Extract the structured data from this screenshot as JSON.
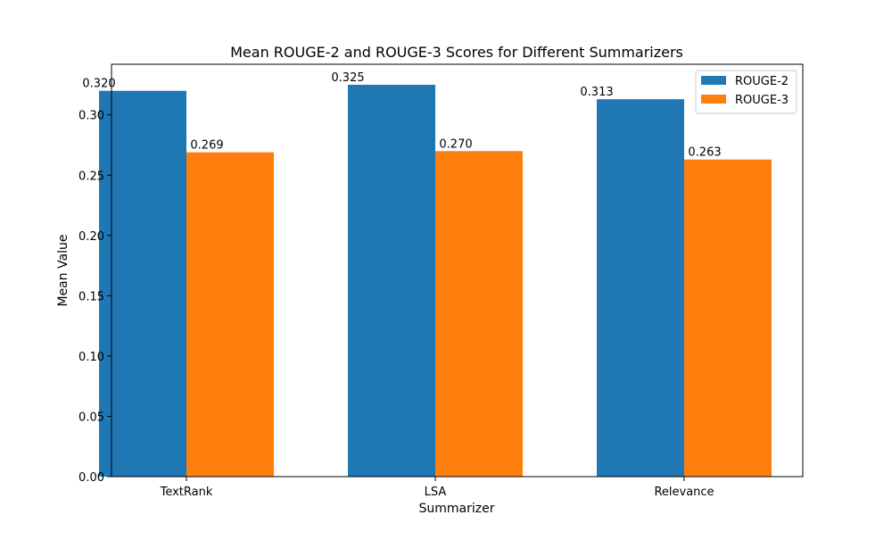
{
  "chart_data": {
    "type": "bar",
    "title": "Mean ROUGE-2 and ROUGE-3 Scores for Different Summarizers",
    "xlabel": "Summarizer",
    "ylabel": "Mean Value",
    "categories": [
      "TextRank",
      "LSA",
      "Relevance"
    ],
    "series": [
      {
        "name": "ROUGE-2",
        "color": "#1f77b4",
        "values": [
          0.32,
          0.325,
          0.313
        ],
        "labels": [
          "0.320",
          "0.325",
          "0.313"
        ]
      },
      {
        "name": "ROUGE-3",
        "color": "#ff7f0e",
        "values": [
          0.269,
          0.27,
          0.263
        ],
        "labels": [
          "0.269",
          "0.270",
          "0.263"
        ]
      }
    ],
    "ylim": [
      0,
      0.342
    ],
    "yticks": [
      0.0,
      0.05,
      0.1,
      0.15,
      0.2,
      0.25,
      0.3
    ],
    "ytick_labels": [
      "0.00",
      "0.05",
      "0.10",
      "0.15",
      "0.20",
      "0.25",
      "0.30"
    ],
    "grid": false,
    "legend_position": "top-right"
  }
}
